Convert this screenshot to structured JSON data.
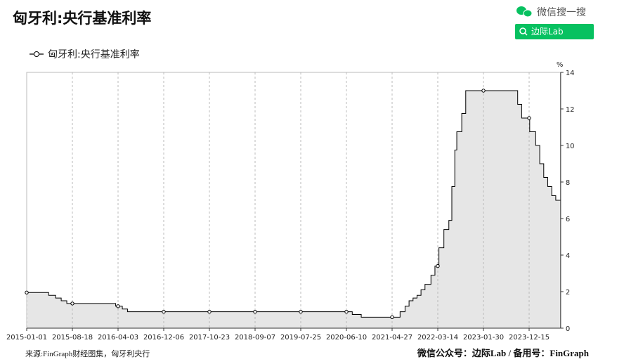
{
  "header": {
    "search_label": "微信搜一搜",
    "button": "边际Lab"
  },
  "footer": {
    "source": "来源:FinGraph财经图集，匈牙利央行",
    "account": "微信公众号：边际Lab / 备用号：FinGraph"
  },
  "chart_data": {
    "type": "line",
    "title": "匈牙利:央行基准利率",
    "y_unit": "%",
    "step": true,
    "grid": true,
    "x": [
      "2015-01-01",
      "2015-04-21",
      "2015-05-26",
      "2015-06-23",
      "2015-07-21",
      "2015-08-18",
      "2016-03-22",
      "2016-04-03",
      "2016-04-26",
      "2016-05-24",
      "2016-12-06",
      "2017-10-23",
      "2018-09-07",
      "2019-07-25",
      "2020-06-10",
      "2020-07-21",
      "2020-09-22",
      "2021-04-27",
      "2021-06-22",
      "2021-07-27",
      "2021-08-24",
      "2021-09-21",
      "2021-10-19",
      "2021-11-16",
      "2021-12-14",
      "2022-01-25",
      "2022-02-22",
      "2022-03-14",
      "2022-03-22",
      "2022-04-26",
      "2022-05-31",
      "2022-06-21",
      "2022-07-12",
      "2022-07-26",
      "2022-08-30",
      "2022-09-27",
      "2023-01-30",
      "2023-09-26",
      "2023-10-24",
      "2023-12-15",
      "2023-12-19",
      "2024-01-30",
      "2024-02-27",
      "2024-03-26",
      "2024-04-23",
      "2024-05-21",
      "2024-06-18",
      "2024-07-22"
    ],
    "series": [
      {
        "name": "匈牙利:央行基准利率",
        "color": "#000000",
        "fill": "#e6e6e6",
        "values": [
          1.95,
          1.8,
          1.65,
          1.5,
          1.35,
          1.35,
          1.2,
          1.2,
          1.05,
          0.9,
          0.9,
          0.9,
          0.9,
          0.9,
          0.9,
          0.75,
          0.6,
          0.6,
          0.9,
          1.2,
          1.5,
          1.65,
          1.8,
          2.1,
          2.4,
          2.9,
          3.4,
          3.4,
          4.4,
          5.4,
          5.9,
          7.75,
          9.75,
          10.75,
          11.75,
          13,
          13,
          12.25,
          11.5,
          11.5,
          10.75,
          10,
          9,
          8.25,
          7.75,
          7.25,
          7,
          7
        ]
      }
    ],
    "xlim": [
      "2015-01-01",
      "2024-07-22"
    ],
    "xticks": [
      "2015-01-01",
      "2015-08-18",
      "2016-04-03",
      "2016-12-06",
      "2017-10-23",
      "2018-09-07",
      "2019-07-25",
      "2020-06-10",
      "2021-04-27",
      "2022-03-14",
      "2023-01-30",
      "2023-12-15"
    ],
    "ylim": [
      0,
      14
    ],
    "yticks": [
      0,
      2,
      4,
      6,
      8,
      10,
      12,
      14
    ]
  }
}
